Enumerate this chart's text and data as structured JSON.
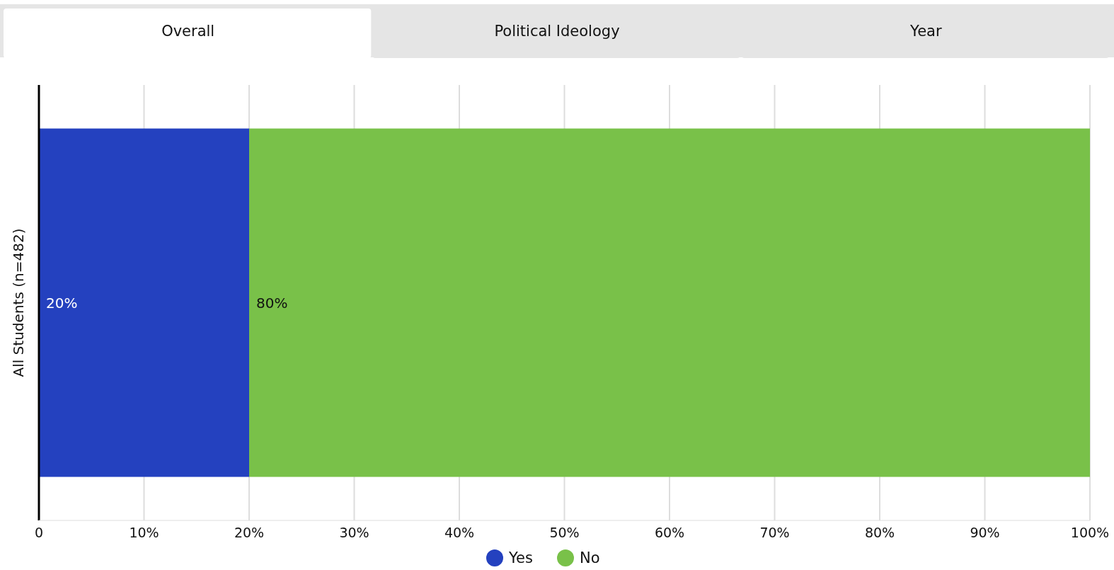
{
  "chart_data": {
    "type": "bar",
    "orientation": "horizontal",
    "stacked": true,
    "annotations": [
      "Overall",
      "Political Ideology",
      "Year"
    ],
    "categories": [
      "All Students (n=482)"
    ],
    "series": [
      {
        "name": "Yes",
        "color": "#2441bf",
        "values": [
          20
        ],
        "value_labels": [
          "20%"
        ]
      },
      {
        "name": "No",
        "color": "#79c149",
        "values": [
          80
        ],
        "value_labels": [
          "80%"
        ]
      }
    ],
    "xlim": [
      0,
      100
    ],
    "xticks": [
      0,
      {
        "value": 10,
        "label": "10%"
      },
      {
        "value": 20,
        "label": "20%"
      },
      {
        "value": 30,
        "label": "30%"
      },
      {
        "value": 40,
        "label": "40%"
      },
      {
        "value": 50,
        "label": "50%"
      },
      {
        "value": 60,
        "label": "60%"
      },
      {
        "value": 70,
        "label": "70%"
      },
      {
        "value": 80,
        "label": "80%"
      },
      {
        "value": 90,
        "label": "90%"
      },
      {
        "value": 100,
        "label": "100%"
      }
    ],
    "grid": "x",
    "legend": "bottom"
  }
}
